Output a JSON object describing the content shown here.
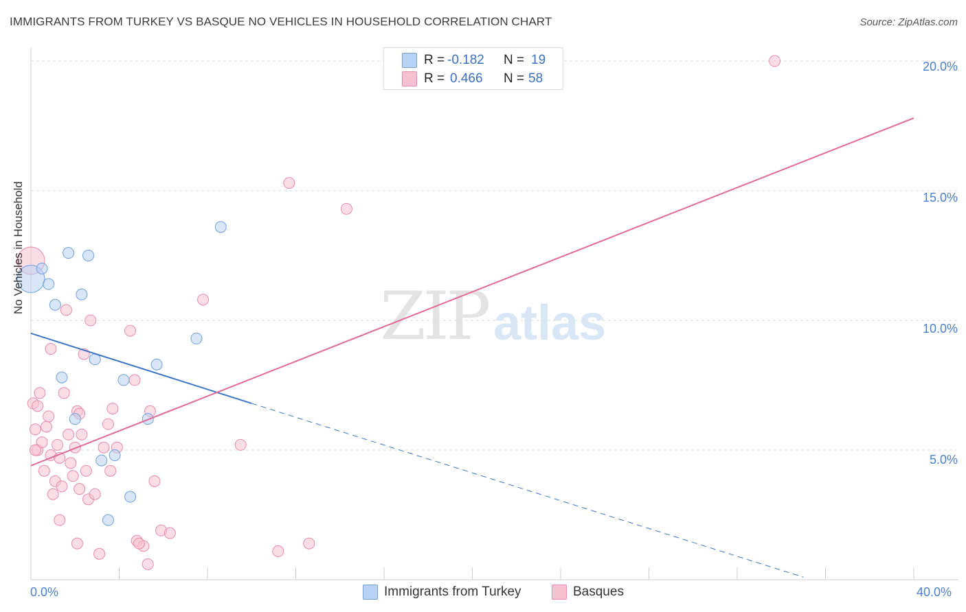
{
  "title": "IMMIGRANTS FROM TURKEY VS BASQUE NO VEHICLES IN HOUSEHOLD CORRELATION CHART",
  "source": "Source: ZipAtlas.com",
  "watermark": {
    "zip": "ZIP",
    "atlas": "atlas"
  },
  "colors": {
    "blue_fill": "#b8d2f3",
    "blue_line": "#3a74c9",
    "pink_fill": "#f7c1d1",
    "pink_line": "#e06a92",
    "grid": "#dddddd",
    "tick_text": "#4a7fcb"
  },
  "legend": {
    "rows": [
      {
        "r_label": "R =",
        "r_value": "-0.182",
        "n_label": "N =",
        "n_value": "19",
        "color": "#b8d2f3",
        "border": "#6f9fdc"
      },
      {
        "r_label": "R =",
        "r_value": "0.466",
        "n_label": "N =",
        "n_value": "58",
        "color": "#f7c1d1",
        "border": "#e88aa8"
      }
    ]
  },
  "bottom_legend": [
    {
      "label": "Immigrants from Turkey",
      "color": "#b8d2f3",
      "border": "#6f9fdc"
    },
    {
      "label": "Basques",
      "color": "#f7c1d1",
      "border": "#e88aa8"
    }
  ],
  "chart_data": {
    "type": "scatter",
    "title": "IMMIGRANTS FROM TURKEY VS BASQUE NO VEHICLES IN HOUSEHOLD CORRELATION CHART",
    "xlabel": "",
    "ylabel": "No Vehicles in Household",
    "xlim": [
      0,
      40
    ],
    "ylim": [
      0,
      20.5
    ],
    "x_tick_labels": [
      "0.0%",
      "40.0%"
    ],
    "y_ticks": [
      5,
      10,
      15,
      20
    ],
    "y_tick_labels": [
      "5.0%",
      "10.0%",
      "15.0%",
      "20.0%"
    ],
    "series": [
      {
        "name": "Immigrants from Turkey",
        "r": -0.182,
        "n": 19,
        "points": [
          [
            0.0,
            11.6
          ],
          [
            0.5,
            12.0
          ],
          [
            0.8,
            11.4
          ],
          [
            1.1,
            10.6
          ],
          [
            1.4,
            7.8
          ],
          [
            1.7,
            12.6
          ],
          [
            2.0,
            6.2
          ],
          [
            2.3,
            11.0
          ],
          [
            2.6,
            12.5
          ],
          [
            2.9,
            8.5
          ],
          [
            3.2,
            4.6
          ],
          [
            3.8,
            4.8
          ],
          [
            4.2,
            7.7
          ],
          [
            4.5,
            3.2
          ],
          [
            5.3,
            6.2
          ],
          [
            5.7,
            8.3
          ],
          [
            7.5,
            9.3
          ],
          [
            8.6,
            13.6
          ],
          [
            3.5,
            2.3
          ]
        ],
        "trend": {
          "x1": 0.0,
          "y1": 9.5,
          "x2": 10.0,
          "y2": 6.8,
          "dash_x2": 35.0,
          "dash_y2": 0.1
        }
      },
      {
        "name": "Basques",
        "r": 0.466,
        "n": 58,
        "points": [
          [
            0.0,
            12.3
          ],
          [
            0.1,
            6.8
          ],
          [
            0.2,
            5.8
          ],
          [
            0.3,
            5.0
          ],
          [
            0.4,
            7.2
          ],
          [
            0.5,
            5.3
          ],
          [
            0.6,
            4.2
          ],
          [
            0.7,
            5.9
          ],
          [
            0.8,
            6.3
          ],
          [
            0.9,
            4.8
          ],
          [
            1.0,
            3.3
          ],
          [
            1.1,
            3.8
          ],
          [
            1.2,
            5.2
          ],
          [
            1.3,
            4.7
          ],
          [
            1.4,
            3.6
          ],
          [
            1.5,
            7.2
          ],
          [
            1.6,
            10.4
          ],
          [
            1.7,
            5.6
          ],
          [
            1.8,
            4.5
          ],
          [
            1.9,
            4.0
          ],
          [
            2.0,
            5.1
          ],
          [
            2.1,
            6.5
          ],
          [
            2.2,
            3.5
          ],
          [
            2.3,
            5.6
          ],
          [
            2.4,
            8.7
          ],
          [
            2.5,
            4.2
          ],
          [
            2.6,
            3.1
          ],
          [
            2.7,
            10.0
          ],
          [
            2.9,
            3.3
          ],
          [
            3.1,
            1.0
          ],
          [
            3.3,
            5.1
          ],
          [
            3.5,
            6.0
          ],
          [
            3.6,
            4.2
          ],
          [
            3.7,
            6.6
          ],
          [
            3.9,
            5.1
          ],
          [
            4.5,
            9.6
          ],
          [
            4.7,
            7.7
          ],
          [
            4.8,
            1.5
          ],
          [
            5.1,
            1.3
          ],
          [
            5.3,
            0.6
          ],
          [
            5.4,
            6.5
          ],
          [
            5.6,
            3.8
          ],
          [
            5.9,
            1.9
          ],
          [
            6.3,
            1.8
          ],
          [
            7.8,
            10.8
          ],
          [
            9.5,
            5.2
          ],
          [
            11.2,
            1.1
          ],
          [
            11.7,
            15.3
          ],
          [
            12.6,
            1.4
          ],
          [
            14.3,
            14.3
          ],
          [
            33.7,
            20.0
          ],
          [
            0.3,
            6.7
          ],
          [
            0.9,
            8.9
          ],
          [
            1.3,
            2.3
          ],
          [
            2.2,
            6.4
          ],
          [
            4.9,
            1.4
          ],
          [
            0.2,
            5.0
          ],
          [
            2.1,
            1.4
          ]
        ],
        "trend": {
          "x1": 0.0,
          "y1": 4.4,
          "x2": 40.0,
          "y2": 17.8
        }
      }
    ]
  }
}
